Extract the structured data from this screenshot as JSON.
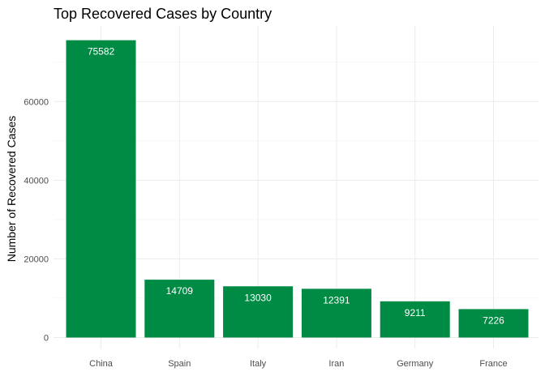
{
  "chart_data": {
    "type": "bar",
    "title": "Top Recovered Cases by Country",
    "xlabel": "",
    "ylabel": "Number of Recovered Cases",
    "categories": [
      "China",
      "Spain",
      "Italy",
      "Iran",
      "Germany",
      "France"
    ],
    "values": [
      75582,
      14709,
      13030,
      12391,
      9211,
      7226
    ],
    "data_labels": [
      "75582",
      "14709",
      "13030",
      "12391",
      "9211",
      "7226"
    ],
    "y_ticks": [
      0,
      20000,
      40000,
      60000
    ],
    "y_tick_labels": [
      "0",
      "20000",
      "40000",
      "60000"
    ],
    "ylim": [
      0,
      79000
    ],
    "grid": true,
    "legend": "none",
    "bar_color": "#008B45",
    "data_label_color": "#ffffff"
  }
}
